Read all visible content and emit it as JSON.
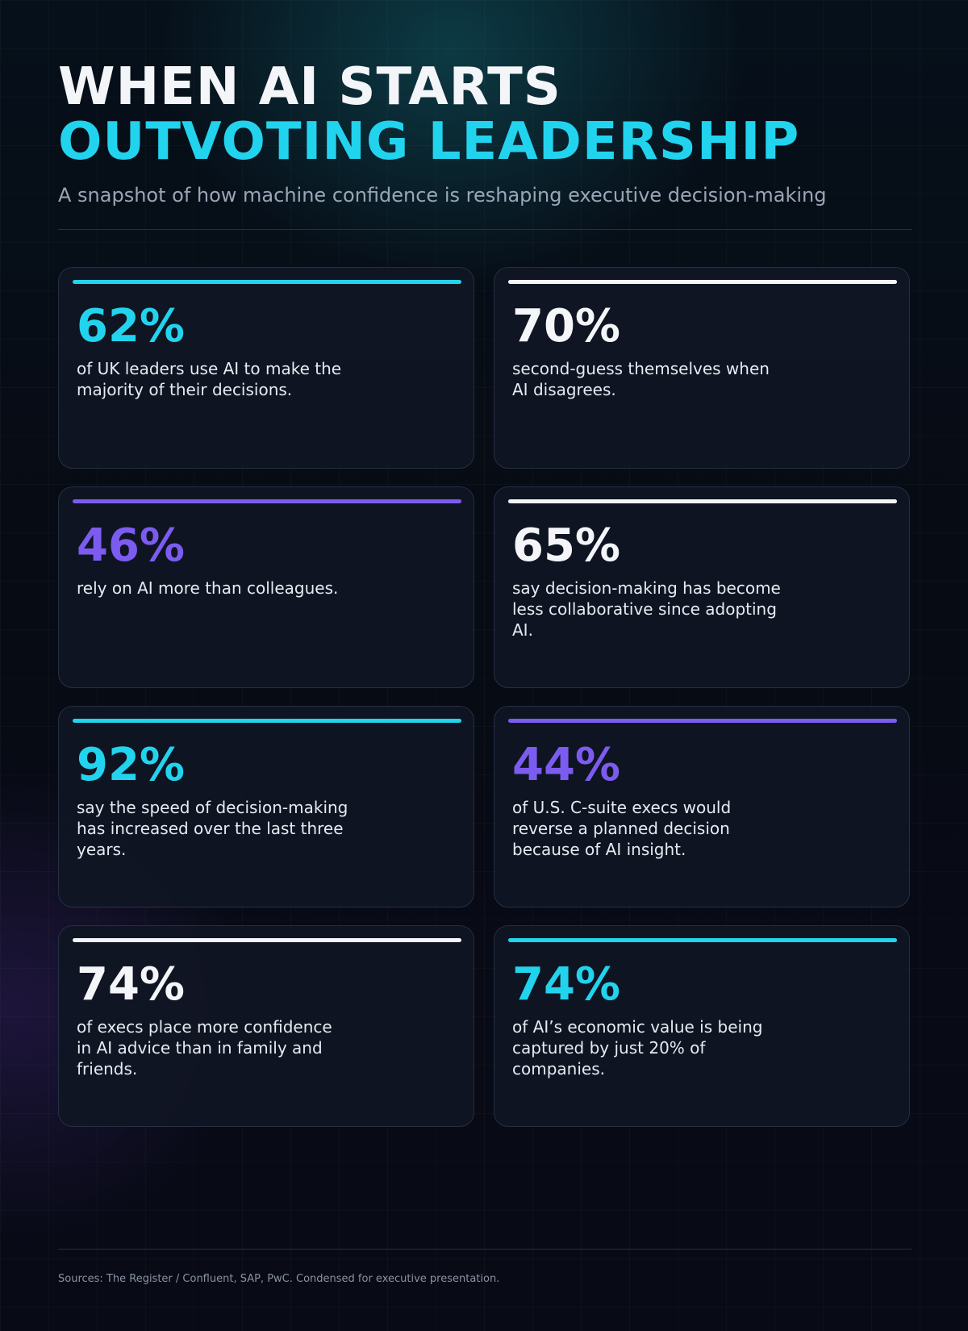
{
  "header": {
    "title_line1": "WHEN AI STARTS",
    "title_line2": "OUTVOTING LEADERSHIP",
    "subtitle": "A snapshot of how machine confidence is reshaping executive decision-making"
  },
  "stats": [
    {
      "value": "62%",
      "text": "of UK leaders use AI to make the majority of their decisions.",
      "accent": "#22d3ee"
    },
    {
      "value": "70%",
      "text": "second-guess themselves when AI disagrees.",
      "accent": "#f3f5f8"
    },
    {
      "value": "46%",
      "text": "rely on AI more than colleagues.",
      "accent": "#7c5cf0"
    },
    {
      "value": "65%",
      "text": "say decision-making has become less collaborative since adopting AI.",
      "accent": "#f3f5f8"
    },
    {
      "value": "92%",
      "text": "say the speed of decision-making has increased over the last three years.",
      "accent": "#22d3ee"
    },
    {
      "value": "44%",
      "text": "of U.S. C-suite execs would reverse a planned decision because of AI insight.",
      "accent": "#7c5cf0"
    },
    {
      "value": "74%",
      "text": "of execs place more confidence in AI advice than in family and friends.",
      "accent": "#f3f5f8"
    },
    {
      "value": "74%",
      "text": "of AI’s economic value is being captured by just 20% of companies.",
      "accent": "#22d3ee"
    }
  ],
  "footer": {
    "sources": "Sources: The Register / Confluent, SAP, PwC. Condensed for executive presentation."
  }
}
